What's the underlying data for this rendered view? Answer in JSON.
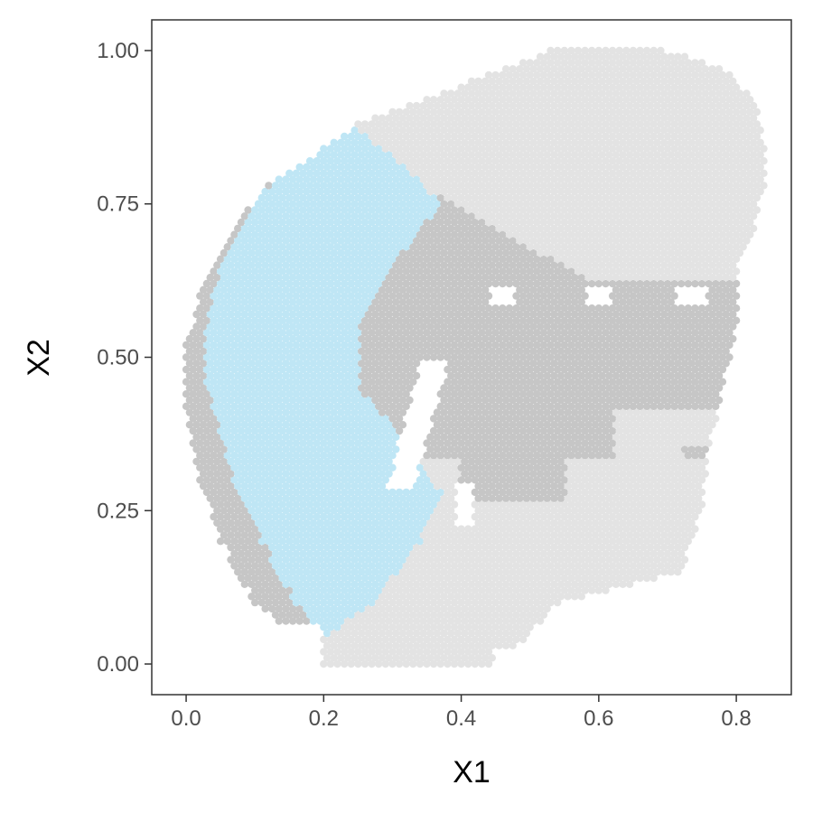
{
  "chart_data": {
    "type": "scatter",
    "title": "",
    "xlabel": "X1",
    "ylabel": "X2",
    "xlim": [
      -0.05,
      0.88
    ],
    "ylim": [
      -0.05,
      1.05
    ],
    "x_ticks": [
      "0.0",
      "0.2",
      "0.4",
      "0.6",
      "0.8"
    ],
    "y_ticks": [
      "0.00",
      "0.25",
      "0.50",
      "0.75",
      "1.00"
    ],
    "grid": false,
    "legend": "none",
    "point_spacing": 0.01,
    "colors": {
      "highlight": "#bfe6f5",
      "medium": "#c6c6c6",
      "light": "#e3e3e3",
      "panel_border": "#333333",
      "tick": "#333333"
    },
    "series": [
      {
        "color_key": "light",
        "description_key": "outer-region",
        "count_estimate": 1250
      },
      {
        "color_key": "medium",
        "description_key": "central-region",
        "count_estimate": 900
      },
      {
        "color_key": "highlight",
        "description_key": "left-band-region",
        "count_estimate": 560
      }
    ]
  }
}
